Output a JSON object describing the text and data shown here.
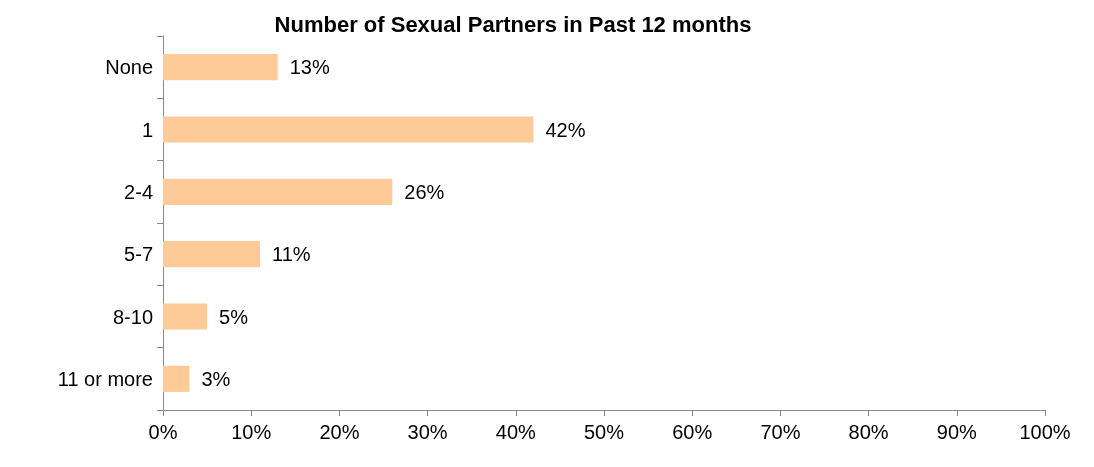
{
  "chart_data": {
    "type": "bar",
    "orientation": "horizontal",
    "title": "Number of Sexual Partners in Past 12 months",
    "categories": [
      "None",
      "1",
      "2-4",
      "5-7",
      "8-10",
      "11 or more"
    ],
    "values": [
      13,
      42,
      26,
      11,
      5,
      3
    ],
    "value_labels": [
      "13%",
      "42%",
      "26%",
      "11%",
      "5%",
      "3%"
    ],
    "color": "#fecb98",
    "xlim": [
      0,
      100
    ],
    "xticks": [
      {
        "value": 0,
        "label": "0%"
      },
      {
        "value": 10,
        "label": "10%"
      },
      {
        "value": 20,
        "label": "20%"
      },
      {
        "value": 30,
        "label": "30%"
      },
      {
        "value": 40,
        "label": "40%"
      },
      {
        "value": 50,
        "label": "50%"
      },
      {
        "value": 60,
        "label": "60%"
      },
      {
        "value": 70,
        "label": "70%"
      },
      {
        "value": 80,
        "label": "80%"
      },
      {
        "value": 90,
        "label": "90%"
      },
      {
        "value": 100,
        "label": "100%"
      }
    ],
    "grid": false
  }
}
